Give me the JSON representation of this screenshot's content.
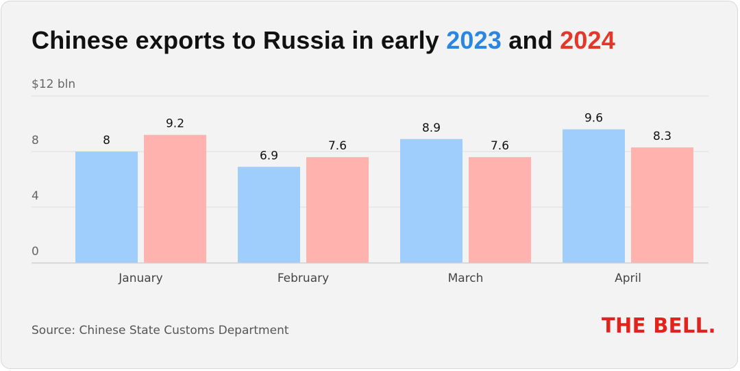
{
  "title": {
    "prefix": "Chinese exports to Russia in early ",
    "year_a": "2023",
    "middle": " and ",
    "year_b": "2024"
  },
  "colors": {
    "series_2023": "#9fcdfc",
    "series_2024": "#ffb2ae",
    "title_2023": "#2a86e0",
    "title_2024": "#e3372a",
    "gridline": "#dcdcdc",
    "baseline": "#cfcfcf"
  },
  "chart_data": {
    "type": "bar",
    "categories": [
      "January",
      "February",
      "March",
      "April"
    ],
    "series": [
      {
        "name": "2023",
        "values": [
          8,
          6.9,
          8.9,
          9.6
        ]
      },
      {
        "name": "2024",
        "values": [
          9.2,
          7.6,
          7.6,
          8.3
        ]
      }
    ],
    "data_labels": [
      [
        "8",
        "6.9",
        "8.9",
        "9.6"
      ],
      [
        "9.2",
        "7.6",
        "7.6",
        "8.3"
      ]
    ],
    "y_ticks": [
      {
        "value": 0,
        "label": "0"
      },
      {
        "value": 4,
        "label": "4"
      },
      {
        "value": 8,
        "label": "8"
      },
      {
        "value": 12,
        "label": "$12 bln"
      }
    ],
    "ylim": [
      0,
      12
    ],
    "grid": true,
    "legend": "in title"
  },
  "source": "Source: Chinese State Customs Department",
  "logo": "THE BELL."
}
